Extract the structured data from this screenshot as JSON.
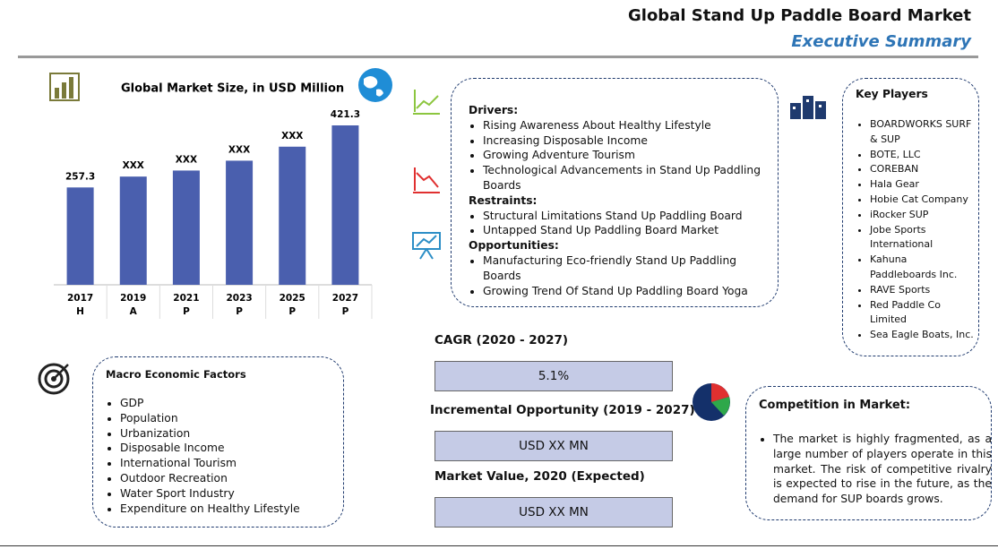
{
  "header": {
    "title": "Global Stand Up Paddle Board Market",
    "subtitle": "Executive Summary"
  },
  "chart_data": {
    "type": "bar",
    "title": "Global Market Size, in USD Million",
    "categories": [
      "2017",
      "2019",
      "2021",
      "2023",
      "2025",
      "2027"
    ],
    "category_notes": [
      "H",
      "A",
      "P",
      "P",
      "P",
      "P"
    ],
    "values": [
      257.3,
      286,
      302,
      328,
      365,
      421.3
    ],
    "value_labels": [
      "257.3",
      "XXX",
      "XXX",
      "XXX",
      "XXX",
      "421.3"
    ],
    "color": "#4a5fae"
  },
  "dynamics": {
    "sections": [
      {
        "heading": "Drivers:",
        "items": [
          "Rising Awareness About Healthy Lifestyle",
          "Increasing Disposable Income",
          "Growing Adventure Tourism",
          "Technological Advancements in Stand Up Paddling Boards"
        ]
      },
      {
        "heading": "Restraints:",
        "items": [
          "Structural Limitations Stand Up Paddling Board",
          "Untapped Stand Up Paddling Board Market"
        ]
      },
      {
        "heading": "Opportunities:",
        "items": [
          "Manufacturing Eco-friendly Stand Up Paddling Boards",
          "Growing Trend Of Stand Up Paddling Board Yoga"
        ]
      }
    ]
  },
  "key_players": {
    "title": "Key Players",
    "items": [
      "BOARDWORKS SURF & SUP",
      "BOTE, LLC",
      "COREBAN",
      "Hala Gear",
      "Hobie Cat Company",
      "iRocker SUP",
      "Jobe Sports International",
      "Kahuna Paddleboards Inc.",
      "RAVE Sports",
      "Red Paddle Co Limited",
      "Sea Eagle Boats, Inc."
    ]
  },
  "macro": {
    "title": "Macro Economic Factors",
    "items": [
      "GDP",
      "Population",
      "Urbanization",
      "Disposable Income",
      "International Tourism",
      "Outdoor Recreation",
      "Water Sport Industry",
      "Expenditure on Healthy Lifestyle"
    ]
  },
  "metrics": [
    {
      "label": "CAGR (2020 - 2027)",
      "value": "5.1%"
    },
    {
      "label": "Incremental Opportunity (2019 - 2027)",
      "value": "USD XX MN"
    },
    {
      "label": "Market Value, 2020 (Expected)",
      "value": "USD XX MN"
    }
  ],
  "competition": {
    "title": "Competition in Market:",
    "items": [
      "The market is highly fragmented, as a large number of players operate in this market. The risk of competitive rivalry is expected to rise in the future, as the demand for SUP boards grows."
    ]
  }
}
